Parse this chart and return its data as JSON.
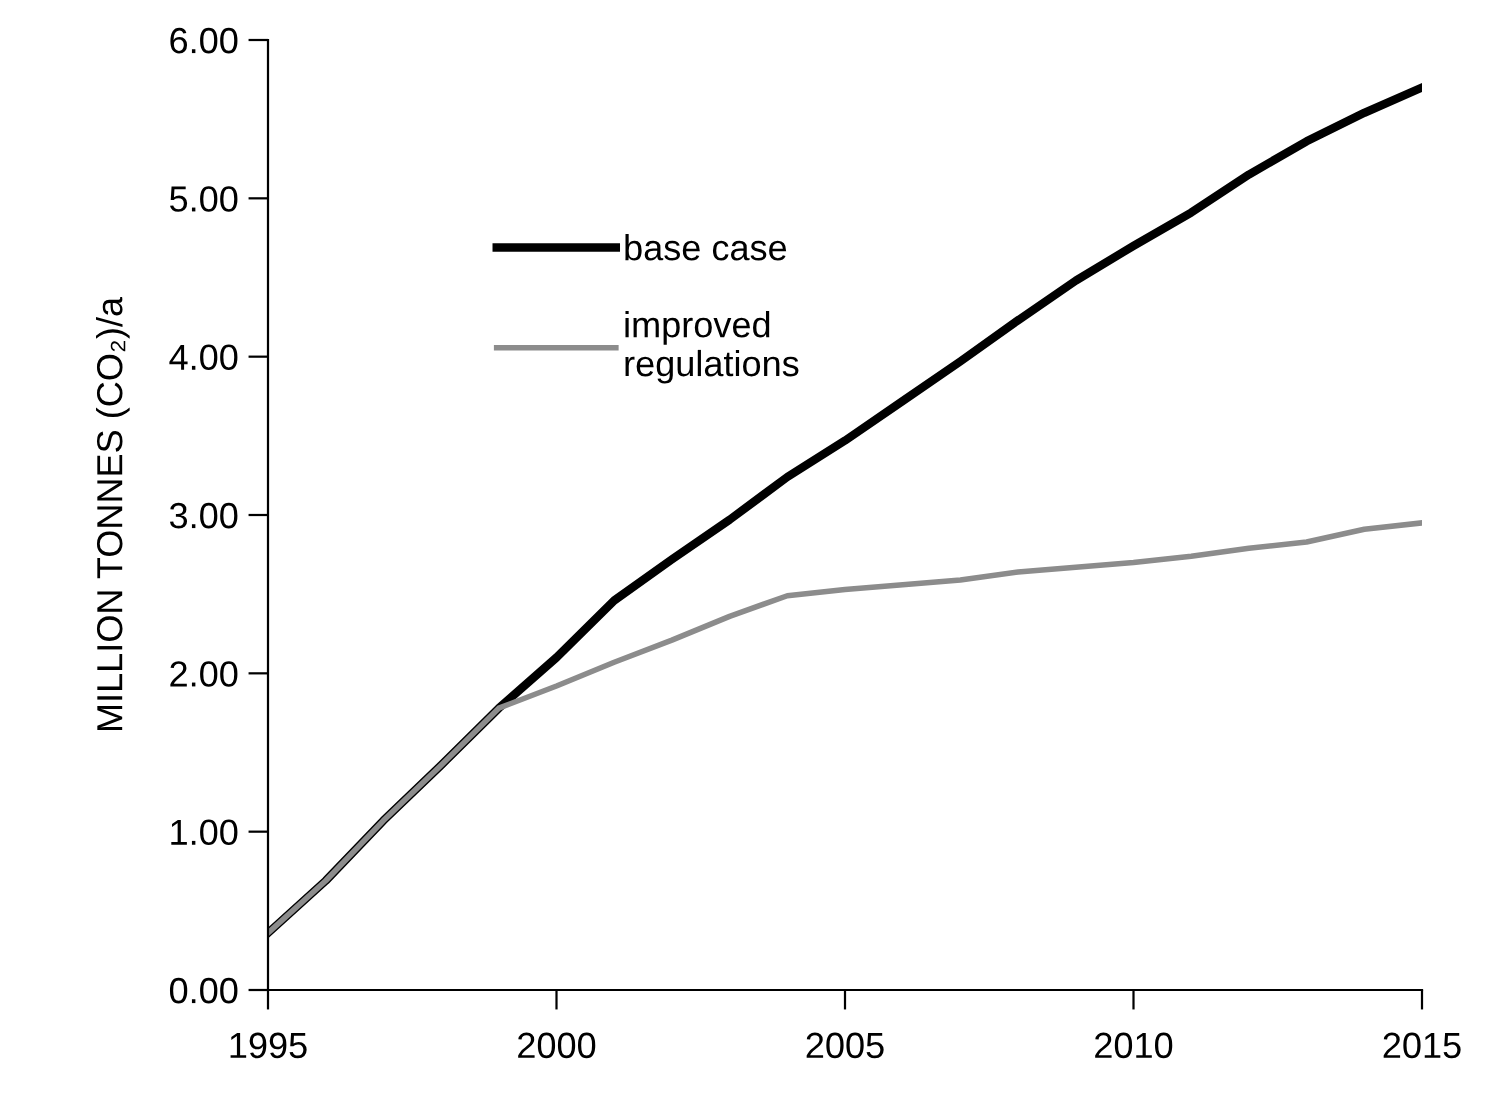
{
  "chart_data": {
    "type": "line",
    "ylabel": "MILLION TONNES (CO₂)/a",
    "x": [
      1995,
      1996,
      1997,
      1998,
      1999,
      2000,
      2001,
      2002,
      2003,
      2004,
      2005,
      2006,
      2007,
      2008,
      2009,
      2010,
      2011,
      2012,
      2013,
      2014,
      2015
    ],
    "series": [
      {
        "name": "base case",
        "color": "#000000",
        "values": [
          0.36,
          0.69,
          1.07,
          1.42,
          1.78,
          2.1,
          2.46,
          2.72,
          2.97,
          3.24,
          3.47,
          3.72,
          3.97,
          4.23,
          4.48,
          4.7,
          4.91,
          5.15,
          5.36,
          5.54,
          5.7
        ]
      },
      {
        "name": "improved\nregulations",
        "color": "#8c8c8c",
        "values": [
          0.36,
          0.69,
          1.07,
          1.42,
          1.78,
          1.92,
          2.07,
          2.21,
          2.36,
          2.49,
          2.53,
          2.56,
          2.59,
          2.64,
          2.67,
          2.7,
          2.74,
          2.79,
          2.83,
          2.91,
          2.95
        ]
      }
    ],
    "xlim": [
      1995,
      2015
    ],
    "xticks": [
      1995,
      2000,
      2005,
      2010,
      2015
    ],
    "ylim": [
      0,
      6
    ],
    "yticks": [
      {
        "value": 0,
        "label": "0.00"
      },
      {
        "value": 1,
        "label": "1.00"
      },
      {
        "value": 2,
        "label": "2.00"
      },
      {
        "value": 3,
        "label": "3.00"
      },
      {
        "value": 4,
        "label": "4.00"
      },
      {
        "value": 5,
        "label": "5.00"
      },
      {
        "value": 6,
        "label": "6.00"
      }
    ],
    "grid": false,
    "legend": "top left",
    "marker": "none",
    "line_style": "solid"
  }
}
